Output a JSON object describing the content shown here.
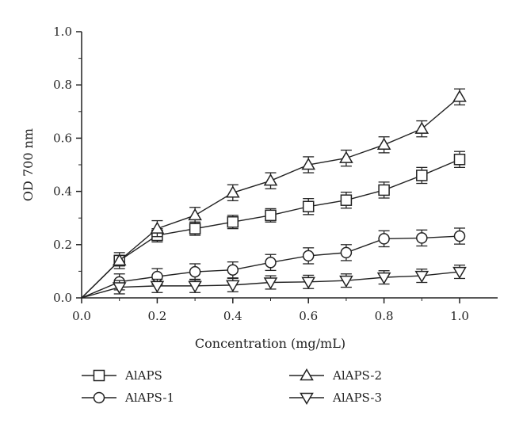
{
  "chart_data": {
    "type": "line",
    "xlabel": "Concentration (mg/mL)",
    "ylabel": "OD 700 nm",
    "xlim": [
      0,
      1.0
    ],
    "ylim": [
      0,
      1.0
    ],
    "xticks": [
      "0.0",
      "0.2",
      "0.4",
      "0.6",
      "0.8",
      "1.0"
    ],
    "yticks": [
      "0.0",
      "0.2",
      "0.4",
      "0.6",
      "0.8",
      "1.0"
    ],
    "x": [
      0.0,
      0.1,
      0.2,
      0.3,
      0.4,
      0.5,
      0.6,
      0.7,
      0.8,
      0.9,
      1.0
    ],
    "grid": false,
    "legend_position": "bottom",
    "series": [
      {
        "name": "AlAPS",
        "marker": "square",
        "values": [
          0.0,
          0.14,
          0.235,
          0.26,
          0.285,
          0.31,
          0.343,
          0.367,
          0.405,
          0.46,
          0.52
        ],
        "errors": [
          0,
          0.02,
          0.025,
          0.025,
          0.025,
          0.025,
          0.03,
          0.03,
          0.03,
          0.03,
          0.03
        ]
      },
      {
        "name": "AlAPS-1",
        "marker": "circle",
        "values": [
          0.0,
          0.06,
          0.08,
          0.098,
          0.105,
          0.133,
          0.158,
          0.17,
          0.222,
          0.225,
          0.232
        ],
        "errors": [
          0,
          0.03,
          0.03,
          0.03,
          0.03,
          0.03,
          0.03,
          0.03,
          0.03,
          0.03,
          0.03
        ]
      },
      {
        "name": "AlAPS-2",
        "marker": "triangle-up",
        "values": [
          0.0,
          0.14,
          0.26,
          0.31,
          0.395,
          0.44,
          0.5,
          0.525,
          0.575,
          0.635,
          0.755
        ],
        "errors": [
          0,
          0.03,
          0.03,
          0.03,
          0.03,
          0.03,
          0.03,
          0.03,
          0.03,
          0.03,
          0.03
        ]
      },
      {
        "name": "AlAPS-3",
        "marker": "triangle-down",
        "values": [
          0.0,
          0.04,
          0.045,
          0.045,
          0.048,
          0.058,
          0.06,
          0.065,
          0.077,
          0.083,
          0.098
        ],
        "errors": [
          0,
          0.025,
          0.025,
          0.025,
          0.025,
          0.025,
          0.025,
          0.025,
          0.025,
          0.025,
          0.025
        ]
      }
    ],
    "colors": {
      "line": "#222222",
      "marker_fill": "#ffffff"
    }
  }
}
